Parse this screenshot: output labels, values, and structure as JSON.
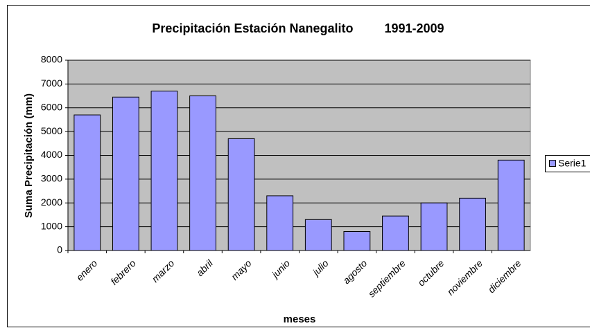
{
  "chart_data": {
    "type": "bar",
    "title": "Precipitación Estación Nanegalito         1991-2009",
    "x_label": "meses",
    "y_label": "Suma Precipitación (mm)",
    "categories": [
      "enero",
      "febrero",
      "marzo",
      "abril",
      "mayo",
      "junio",
      "julio",
      "agosto",
      "septiembre",
      "octubre",
      "noviembre",
      "diciembre"
    ],
    "series": [
      {
        "name": "Serie1",
        "color": "#9999ff",
        "values": [
          5700,
          6450,
          6700,
          6500,
          4700,
          2300,
          1300,
          800,
          1450,
          2000,
          2200,
          3800
        ]
      }
    ],
    "ylim": [
      0,
      8000
    ],
    "yticks": [
      0,
      1000,
      2000,
      3000,
      4000,
      5000,
      6000,
      7000,
      8000
    ],
    "grid": true,
    "legend": "right"
  }
}
